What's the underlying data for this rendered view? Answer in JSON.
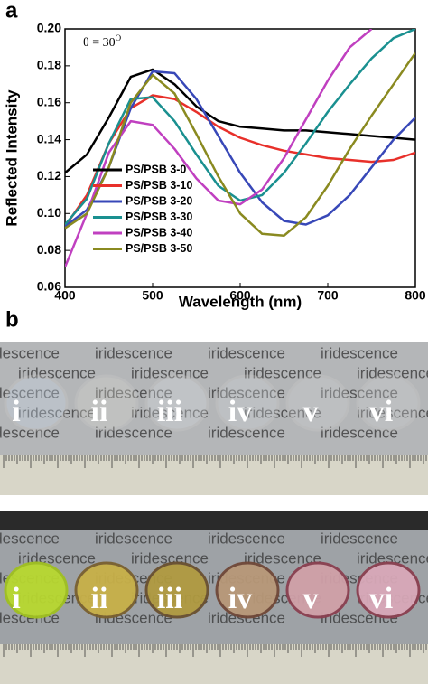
{
  "chart_data": {
    "type": "line",
    "panel_label": "a",
    "xlabel": "Wavelength (nm)",
    "ylabel": "Reflected Intensity",
    "annotation": "θ = 30",
    "annotation_sup": "O",
    "x": [
      400,
      425,
      450,
      475,
      500,
      525,
      550,
      575,
      600,
      625,
      650,
      675,
      700,
      725,
      750,
      775,
      800
    ],
    "series": [
      {
        "name": "PS/PSB 3-0",
        "color": "#000000",
        "values": [
          0.122,
          0.132,
          0.152,
          0.174,
          0.178,
          0.17,
          0.158,
          0.15,
          0.147,
          0.146,
          0.145,
          0.145,
          0.144,
          0.143,
          0.142,
          0.141,
          0.14
        ]
      },
      {
        "name": "PS/PSB 3-10",
        "color": "#e8302a",
        "values": [
          0.093,
          0.11,
          0.138,
          0.157,
          0.164,
          0.162,
          0.155,
          0.147,
          0.141,
          0.137,
          0.134,
          0.132,
          0.13,
          0.129,
          0.128,
          0.129,
          0.133
        ]
      },
      {
        "name": "PS/PSB 3-20",
        "color": "#3848b8",
        "values": [
          0.093,
          0.102,
          0.125,
          0.157,
          0.177,
          0.176,
          0.162,
          0.142,
          0.122,
          0.106,
          0.096,
          0.094,
          0.099,
          0.11,
          0.125,
          0.14,
          0.152
        ]
      },
      {
        "name": "PS/PSB 3-30",
        "color": "#1a9090",
        "values": [
          0.094,
          0.108,
          0.138,
          0.162,
          0.163,
          0.15,
          0.132,
          0.115,
          0.107,
          0.11,
          0.122,
          0.138,
          0.155,
          0.17,
          0.184,
          0.195,
          0.2
        ]
      },
      {
        "name": "PS/PSB 3-40",
        "color": "#c040c0",
        "values": [
          0.071,
          0.1,
          0.133,
          0.15,
          0.148,
          0.135,
          0.119,
          0.107,
          0.105,
          0.113,
          0.13,
          0.151,
          0.172,
          0.19,
          0.2,
          null,
          null
        ]
      },
      {
        "name": "PS/PSB 3-50",
        "color": "#8a8a20",
        "values": [
          0.092,
          0.1,
          0.125,
          0.16,
          0.175,
          0.165,
          0.143,
          0.12,
          0.1,
          0.089,
          0.088,
          0.098,
          0.115,
          0.135,
          0.153,
          0.17,
          0.187
        ]
      }
    ],
    "xlim": [
      400,
      800
    ],
    "xticks": [
      400,
      500,
      600,
      700,
      800
    ],
    "ylim": [
      0.06,
      0.2
    ],
    "yticks": [
      0.06,
      0.08,
      {
        "value": 0.1,
        "label": "0.10"
      },
      0.12,
      0.14,
      0.16,
      0.18,
      {
        "value": 0.2,
        "label": "0.20"
      }
    ]
  },
  "photos": {
    "panel_label": "b",
    "background_word": "iridescence",
    "labels": [
      "i",
      "ii",
      "iii",
      "iv",
      "v",
      "vi"
    ]
  }
}
